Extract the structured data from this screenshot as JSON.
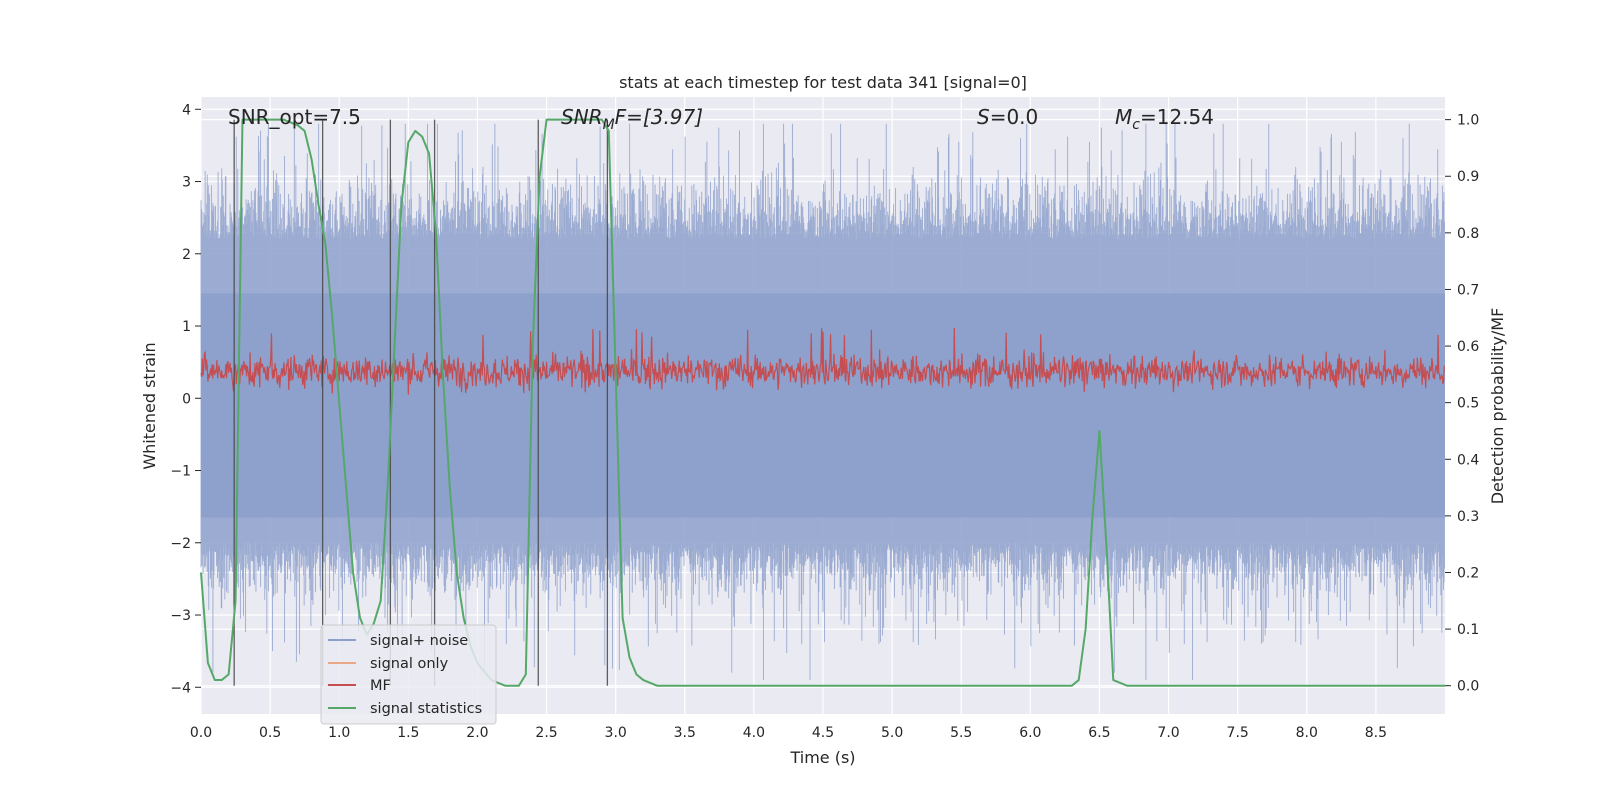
{
  "chart_data": {
    "type": "line",
    "title": "stats at each timestep for test data 341 [signal=0]",
    "xlabel": "Time (s)",
    "ylabel_left": "Whitened strain",
    "ylabel_right": "Detection probability/MF",
    "xlim": [
      0.0,
      9.0
    ],
    "ylim_left": [
      -4.37,
      4.17
    ],
    "ylim_right": [
      -0.05,
      1.04
    ],
    "x_ticks": [
      "0.0",
      "0.5",
      "1.0",
      "1.5",
      "2.0",
      "2.5",
      "3.0",
      "3.5",
      "4.0",
      "4.5",
      "5.0",
      "5.5",
      "6.0",
      "6.5",
      "7.0",
      "7.5",
      "8.0",
      "8.5"
    ],
    "y_ticks_left": [
      "−4",
      "−3",
      "−2",
      "−1",
      "0",
      "1",
      "2",
      "3",
      "4"
    ],
    "y_ticks_right": [
      "0.0",
      "0.1",
      "0.2",
      "0.3",
      "0.4",
      "0.5",
      "0.6",
      "0.7",
      "0.8",
      "0.9",
      "1.0"
    ],
    "grid": true,
    "legend_position": "lower-left",
    "annotations": {
      "snr_opt": "SNR_opt=7.5",
      "snr_mf_label": "SNR",
      "snr_mf_sub": "M",
      "snr_mf_rest": "F=[3.97]",
      "s_label": "S",
      "s_value": "=0.0",
      "mc_label": "M",
      "mc_sub": "c",
      "mc_value": "=12.54"
    },
    "series": [
      {
        "name": "signal+ noise",
        "color": "#8da0cb",
        "axis": "left",
        "description_range": [
          -3.9,
          3.8
        ],
        "typical_envelope": [
          -2.0,
          2.2
        ]
      },
      {
        "name": "signal only",
        "color": "#e9a888",
        "axis": "left",
        "values": []
      },
      {
        "name": "MF",
        "color": "#c44e52",
        "axis": "left",
        "typical_range": [
          0.05,
          0.7
        ],
        "peak": 1.0
      },
      {
        "name": "signal statistics",
        "color": "#55a868",
        "axis": "right",
        "x": [
          0.0,
          0.05,
          0.1,
          0.15,
          0.2,
          0.25,
          0.3,
          0.4,
          0.5,
          0.6,
          0.7,
          0.75,
          0.8,
          0.85,
          0.9,
          0.95,
          1.0,
          1.05,
          1.1,
          1.15,
          1.2,
          1.25,
          1.3,
          1.35,
          1.4,
          1.45,
          1.5,
          1.55,
          1.6,
          1.65,
          1.7,
          1.75,
          1.8,
          1.85,
          1.9,
          1.95,
          2.0,
          2.1,
          2.2,
          2.3,
          2.35,
          2.4,
          2.45,
          2.5,
          2.6,
          2.7,
          2.8,
          2.9,
          2.95,
          3.0,
          3.05,
          3.1,
          3.15,
          3.2,
          3.3,
          3.5,
          4.0,
          5.0,
          6.0,
          6.3,
          6.35,
          6.4,
          6.45,
          6.5,
          6.55,
          6.6,
          6.7,
          7.0,
          8.0,
          9.0
        ],
        "values": [
          0.2,
          0.04,
          0.01,
          0.01,
          0.02,
          0.15,
          1.0,
          1.0,
          1.0,
          1.0,
          0.99,
          0.98,
          0.93,
          0.85,
          0.78,
          0.65,
          0.5,
          0.35,
          0.2,
          0.12,
          0.09,
          0.11,
          0.15,
          0.35,
          0.6,
          0.85,
          0.96,
          0.98,
          0.97,
          0.94,
          0.8,
          0.55,
          0.35,
          0.2,
          0.12,
          0.07,
          0.04,
          0.01,
          0.0,
          0.0,
          0.02,
          0.6,
          0.9,
          1.0,
          1.0,
          1.0,
          1.0,
          1.0,
          0.98,
          0.55,
          0.12,
          0.05,
          0.02,
          0.01,
          0.0,
          0.0,
          0.0,
          0.0,
          0.0,
          0.0,
          0.01,
          0.1,
          0.3,
          0.45,
          0.25,
          0.01,
          0.0,
          0.0,
          0.0,
          0.0
        ]
      }
    ],
    "vertical_lines_x": [
      0.24,
      0.88,
      1.37,
      1.69,
      2.44,
      2.94
    ]
  },
  "legend": {
    "items": [
      "signal+ noise",
      "signal only",
      "MF",
      "signal statistics"
    ]
  }
}
